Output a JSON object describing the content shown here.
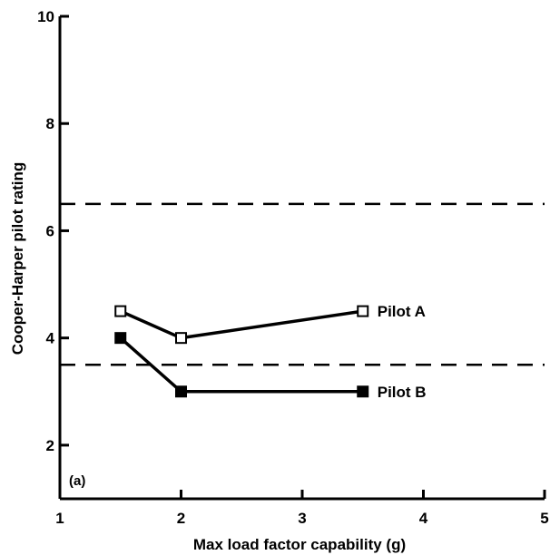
{
  "chart_data": {
    "type": "line",
    "title": "",
    "panel_label": "(a)",
    "xlabel": "Max load factor capability (g)",
    "ylabel": "Cooper-Harper pilot rating",
    "xlim": [
      1,
      5
    ],
    "ylim": [
      1,
      10
    ],
    "x_ticks": [
      1,
      2,
      3,
      4,
      5
    ],
    "y_ticks": [
      2,
      4,
      6,
      8,
      10
    ],
    "grid": false,
    "legend": "inline labels at line ends",
    "reference_lines": [
      {
        "y": 6.5,
        "style": "dashed"
      },
      {
        "y": 3.5,
        "style": "dashed"
      }
    ],
    "series": [
      {
        "name": "Pilot A",
        "marker": "open-square",
        "x": [
          1.5,
          2.0,
          3.5
        ],
        "y": [
          4.5,
          4.0,
          4.5
        ]
      },
      {
        "name": "Pilot B",
        "marker": "filled-square",
        "x": [
          1.5,
          2.0,
          3.5
        ],
        "y": [
          4.0,
          3.0,
          3.0
        ]
      }
    ]
  }
}
